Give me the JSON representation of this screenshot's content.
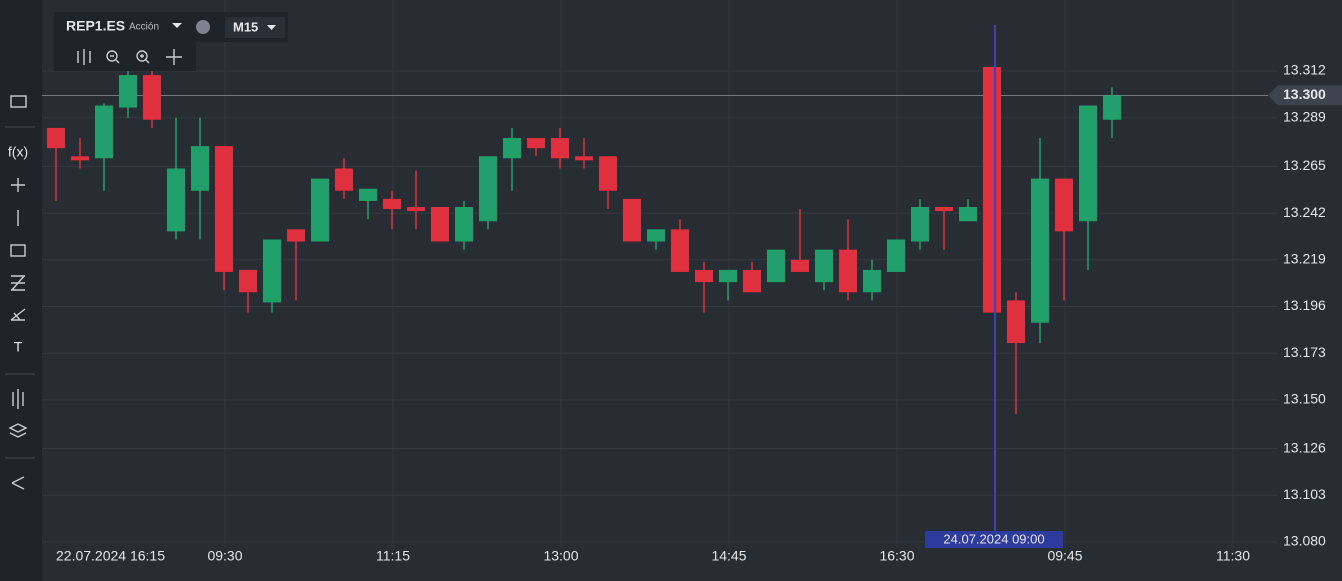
{
  "toolbar": {
    "symbol": "REP1.ES",
    "kind": "Acción",
    "timeframe": "M15",
    "tools": [
      "f(x)",
      "T"
    ]
  },
  "chart_data": {
    "type": "candlestick",
    "categories": [
      "22.07.2024 16:15",
      null,
      null,
      null,
      null,
      null,
      null,
      "09:30",
      null,
      null,
      null,
      null,
      null,
      null,
      "11:15",
      null,
      null,
      null,
      null,
      null,
      null,
      "13:00",
      null,
      null,
      null,
      null,
      null,
      null,
      "14:45",
      null,
      null,
      null,
      null,
      null,
      null,
      "16:30",
      null,
      null,
      null,
      "24.07.2024 09:00",
      null,
      null,
      "09:45",
      null,
      null,
      null,
      null,
      null,
      null,
      "11:30"
    ],
    "open": [
      13.284,
      13.27,
      13.269,
      13.294,
      13.31,
      13.233,
      13.253,
      13.275,
      13.214,
      13.198,
      13.234,
      13.228,
      13.264,
      13.248,
      13.249,
      13.245,
      13.245,
      13.228,
      13.238,
      13.269,
      13.279,
      13.279,
      13.27,
      13.27,
      13.249,
      13.228,
      13.234,
      13.214,
      13.208,
      13.214,
      13.208,
      13.219,
      13.208,
      13.224,
      13.203,
      13.213,
      13.228,
      13.245,
      13.238,
      13.314,
      13.199,
      13.188,
      13.259,
      13.238,
      13.288,
      null,
      null,
      null,
      null,
      null
    ],
    "high": [
      13.284,
      13.279,
      13.296,
      13.313,
      13.313,
      13.289,
      13.289,
      13.275,
      13.214,
      13.229,
      13.234,
      13.259,
      13.269,
      13.254,
      13.253,
      13.263,
      13.245,
      13.248,
      13.27,
      13.284,
      13.279,
      13.284,
      13.279,
      13.27,
      13.249,
      13.234,
      13.239,
      13.218,
      13.214,
      13.218,
      13.224,
      13.244,
      13.224,
      13.239,
      13.219,
      13.229,
      13.249,
      13.245,
      13.249,
      13.314,
      13.203,
      13.279,
      13.259,
      13.295,
      13.304,
      null,
      null,
      null,
      null,
      null
    ],
    "low": [
      13.248,
      13.264,
      13.253,
      13.289,
      13.284,
      13.229,
      13.229,
      13.204,
      13.193,
      13.193,
      13.199,
      13.228,
      13.249,
      13.239,
      13.234,
      13.234,
      13.228,
      13.224,
      13.234,
      13.253,
      13.27,
      13.264,
      13.264,
      13.244,
      13.228,
      13.224,
      13.213,
      13.193,
      13.199,
      13.203,
      13.208,
      13.213,
      13.204,
      13.199,
      13.199,
      13.213,
      13.224,
      13.224,
      13.238,
      13.193,
      13.143,
      13.178,
      13.199,
      13.214,
      13.279,
      null,
      null,
      null,
      null,
      null
    ],
    "close": [
      13.274,
      13.268,
      13.295,
      13.31,
      13.288,
      13.264,
      13.275,
      13.213,
      13.203,
      13.229,
      13.228,
      13.259,
      13.253,
      13.254,
      13.244,
      13.243,
      13.228,
      13.245,
      13.27,
      13.279,
      13.274,
      13.269,
      13.268,
      13.253,
      13.228,
      13.234,
      13.213,
      13.208,
      13.214,
      13.203,
      13.224,
      13.213,
      13.224,
      13.203,
      13.214,
      13.229,
      13.245,
      13.243,
      13.245,
      13.193,
      13.178,
      13.259,
      13.233,
      13.295,
      13.3,
      null,
      null,
      null,
      null,
      null
    ],
    "up_color": "#22a06b",
    "down_color": "#e0303f",
    "ylim": [
      13.077,
      13.347
    ],
    "yticks": [
      {
        "value": 13.08,
        "label": "13.080"
      },
      13.103,
      13.126,
      {
        "value": 13.15,
        "label": "13.150"
      },
      13.173,
      13.196,
      13.219,
      13.242,
      13.265,
      13.289,
      13.312
    ],
    "last_price": {
      "value": 13.3,
      "label": "13.300"
    },
    "crosshair_index": 39,
    "grid": true
  }
}
